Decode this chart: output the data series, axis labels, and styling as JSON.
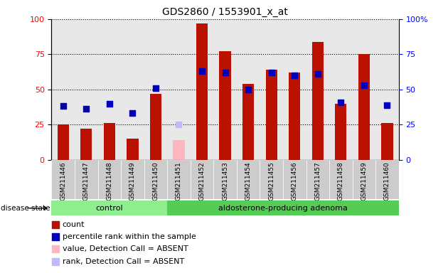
{
  "title": "GDS2860 / 1553901_x_at",
  "samples": [
    "GSM211446",
    "GSM211447",
    "GSM211448",
    "GSM211449",
    "GSM211450",
    "GSM211451",
    "GSM211452",
    "GSM211453",
    "GSM211454",
    "GSM211455",
    "GSM211456",
    "GSM211457",
    "GSM211458",
    "GSM211459",
    "GSM211460"
  ],
  "count_values": [
    25,
    22,
    26,
    15,
    47,
    14,
    97,
    77,
    54,
    64,
    62,
    84,
    40,
    75,
    26
  ],
  "percentile_values": [
    38,
    36,
    40,
    33,
    51,
    25,
    63,
    62,
    50,
    62,
    60,
    61,
    41,
    53,
    39
  ],
  "absent_flags": [
    false,
    false,
    false,
    false,
    false,
    true,
    false,
    false,
    false,
    false,
    false,
    false,
    false,
    false,
    false
  ],
  "groups": [
    {
      "label": "control",
      "start": 0,
      "end": 5
    },
    {
      "label": "aldosterone-producing adenoma",
      "start": 5,
      "end": 15
    }
  ],
  "ylim": [
    0,
    100
  ],
  "bar_color_normal": "#BB1100",
  "bar_color_absent": "#FFB6C1",
  "dot_color_normal": "#0000BB",
  "dot_color_absent": "#BBBBFF",
  "plot_bg_color": "#E8E8E8",
  "disease_state_label": "disease state",
  "legend_items": [
    {
      "label": "count",
      "color": "#BB1100"
    },
    {
      "label": "percentile rank within the sample",
      "color": "#0000BB"
    },
    {
      "label": "value, Detection Call = ABSENT",
      "color": "#FFB6C1"
    },
    {
      "label": "rank, Detection Call = ABSENT",
      "color": "#BBBBFF"
    }
  ]
}
